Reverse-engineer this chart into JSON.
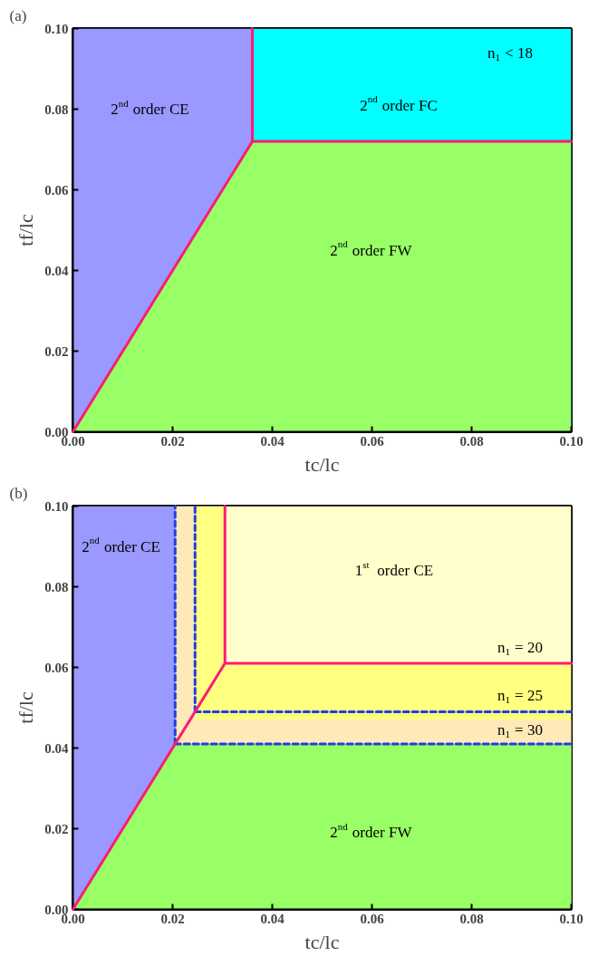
{
  "chart_data": [
    {
      "type": "area",
      "title": "(a)",
      "xlabel": "tc/lc",
      "ylabel": "tf/lc",
      "xlim": [
        0,
        0.1
      ],
      "ylim": [
        0,
        0.1
      ],
      "xticks": [
        {
          "value": 0,
          "label": "0.00"
        },
        {
          "value": 0.02,
          "label": "0.02"
        },
        {
          "value": 0.04,
          "label": "0.04"
        },
        {
          "value": 0.06,
          "label": "0.06"
        },
        {
          "value": 0.08,
          "label": "0.08"
        },
        {
          "value": 0.1,
          "label": "0.10"
        }
      ],
      "yticks": [
        {
          "value": 0,
          "label": "0.00"
        },
        {
          "value": 0.02,
          "label": "0.02"
        },
        {
          "value": 0.04,
          "label": "0.04"
        },
        {
          "value": 0.06,
          "label": "0.06"
        },
        {
          "value": 0.08,
          "label": "0.08"
        },
        {
          "value": 0.1,
          "label": "0.10"
        }
      ],
      "series": [
        {
          "color": "#9999ff",
          "x": [
            0,
            0.036
          ],
          "values": [
            0.1,
            0.1
          ]
        },
        {
          "color": "#00ffff",
          "x": [
            0.036,
            0.1
          ],
          "values": [
            0.1,
            0.1
          ]
        },
        {
          "color": "#99ff66",
          "x": [
            0,
            0.036,
            0.1
          ],
          "values": [
            0,
            0.072,
            0.072
          ]
        },
        {
          "type": "line",
          "color": "#ff1a75",
          "line_style": "solid",
          "x": [
            0,
            0.036
          ],
          "values": [
            0,
            0.072
          ]
        },
        {
          "type": "line",
          "color": "#ff1a75",
          "line_style": "solid",
          "x": [
            0.036,
            0.1
          ],
          "values": [
            0.072,
            0.072
          ]
        },
        {
          "type": "line",
          "color": "#ff1a75",
          "line_style": "solid",
          "x": [
            0.036,
            0.036
          ],
          "values": [
            0.072,
            0.1
          ]
        }
      ],
      "annotations": [
        "2$^{nd}$ order CE",
        "2$^{nd}$ order FC",
        "n$_{1}$ < 18",
        "2$^{nd}$ order FW"
      ]
    },
    {
      "type": "area",
      "title": "(b)",
      "xlabel": "tc/lc",
      "ylabel": "tf/lc",
      "xlim": [
        0,
        0.1
      ],
      "ylim": [
        0,
        0.1
      ],
      "xticks": [
        {
          "value": 0,
          "label": "0.00"
        },
        {
          "value": 0.02,
          "label": "0.02"
        },
        {
          "value": 0.04,
          "label": "0.04"
        },
        {
          "value": 0.06,
          "label": "0.06"
        },
        {
          "value": 0.08,
          "label": "0.08"
        },
        {
          "value": 0.1,
          "label": "0.10"
        }
      ],
      "yticks": [
        {
          "value": 0,
          "label": "0.00"
        },
        {
          "value": 0.02,
          "label": "0.02"
        },
        {
          "value": 0.04,
          "label": "0.04"
        },
        {
          "value": 0.06,
          "label": "0.06"
        },
        {
          "value": 0.08,
          "label": "0.08"
        },
        {
          "value": 0.1,
          "label": "0.10"
        }
      ],
      "series": [
        {
          "color": "#9999ff",
          "x": [
            0,
            0.0205
          ],
          "values": [
            0.1,
            0.1
          ]
        },
        {
          "color": "#ffffcc",
          "x": [
            0.0205,
            0.1
          ],
          "values": [
            0.1,
            0.1
          ]
        },
        {
          "color": "#ffff80",
          "x": [
            0.0245,
            0.0305
          ],
          "values": [
            0.1,
            0.1
          ]
        },
        {
          "color": "#ffff80",
          "x": [
            0.0305,
            0.1
          ],
          "values": [
            0.061,
            0.061
          ]
        },
        {
          "color": "#ffe9b8",
          "x": [
            0.0205,
            0.0245
          ],
          "values": [
            0.1,
            0.1
          ]
        },
        {
          "color": "#ffe9b8",
          "x": [
            0.0245,
            0.1
          ],
          "values": [
            0.047,
            0.047
          ]
        },
        {
          "color": "#99ff66",
          "x": [
            0,
            0.0205,
            0.1
          ],
          "values": [
            0,
            0.041,
            0.041
          ]
        },
        {
          "type": "line",
          "color": "#1f3fe0",
          "line_style": "dashed",
          "x": [
            0.0205,
            0.1
          ],
          "values": [
            0.041,
            0.041
          ]
        },
        {
          "type": "line",
          "color": "#1f3fe0",
          "line_style": "dashed",
          "x": [
            0.0205,
            0.0205
          ],
          "values": [
            0.041,
            0.1
          ]
        },
        {
          "type": "line",
          "color": "#1f3fe0",
          "line_style": "dashed",
          "x": [
            0.0245,
            0.1
          ],
          "values": [
            0.049,
            0.049
          ]
        },
        {
          "type": "line",
          "color": "#1f3fe0",
          "line_style": "dashed",
          "x": [
            0.0245,
            0.0245
          ],
          "values": [
            0.049,
            0.1
          ]
        },
        {
          "type": "line",
          "color": "#ff1a75",
          "line_style": "solid",
          "x": [
            0,
            0.0305,
            0.1
          ],
          "values": [
            0,
            0.061,
            0.061
          ]
        },
        {
          "type": "line",
          "color": "#ff1a75",
          "line_style": "solid",
          "x": [
            0.0305,
            0.0305
          ],
          "values": [
            0.061,
            0.1
          ]
        }
      ],
      "annotations": [
        "2$^{nd}$ order CE",
        "1$^{st}$ order CE",
        "n$_{1}$ = 20",
        "n$_{1}$ = 25",
        "n$_{1}$ = 30",
        "2$^{nd}$ order FW"
      ]
    }
  ]
}
